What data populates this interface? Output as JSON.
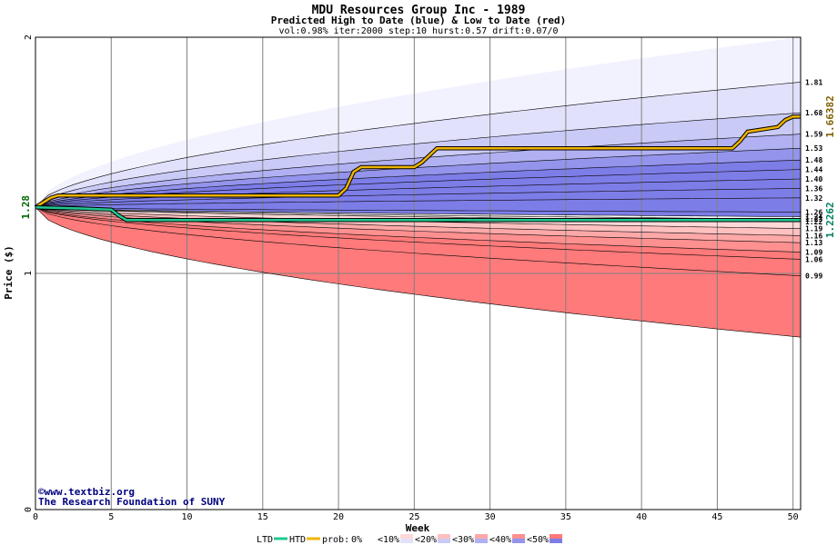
{
  "header": {
    "title": "MDU Resources Group Inc - 1989",
    "subtitle": "Predicted High to Date (blue) &  Low to Date (red)",
    "params": "vol:0.98% iter:2000 step:10 hurst:0.57 drift:0.07/0"
  },
  "credit": {
    "site": "www.textbiz.org",
    "org": "The Research Foundation of SUNY",
    "copyright_symbol": "©"
  },
  "legend": {
    "ltd_label": "LTD",
    "htd_label": "HTD",
    "prob_label": "prob:",
    "items": [
      "0%",
      "<10%",
      "<20%",
      "<30%",
      "<40%",
      "<50%"
    ]
  },
  "colors": {
    "htd_line": "#f0b400",
    "ltd_line": "#20c890",
    "blue_bands": [
      "#f2f2ff",
      "#e1e1fb",
      "#cacaf6",
      "#b0b0f2",
      "#9494ec",
      "#7d7de8"
    ],
    "red_bands": [
      "#fff0f0",
      "#ffd8d8",
      "#ffc0c0",
      "#ffa8a8",
      "#ff9090",
      "#ff7a7a"
    ],
    "start_value": "#006600",
    "htd_value": "#806000",
    "ltd_value": "#008060"
  },
  "chart_data": {
    "type": "area",
    "title": "MDU Resources Group Inc - 1989",
    "xlabel": "Week",
    "ylabel": "Price ($)",
    "xlim": [
      0,
      50.5
    ],
    "ylim": [
      0,
      2
    ],
    "x_ticks": [
      0,
      5,
      10,
      15,
      20,
      25,
      30,
      35,
      40,
      45,
      50
    ],
    "y_ticks": [
      0,
      1,
      2
    ],
    "grid": true,
    "start_price": "1.28",
    "start_price_value": 1.28,
    "htd_final": "1.66382",
    "htd_final_value": 1.66382,
    "ltd_final": "1.2262",
    "ltd_final_value": 1.2262,
    "upper_quantiles": [
      {
        "label": "2.00",
        "value": 2.0,
        "shown": false
      },
      {
        "label": "1.81",
        "value": 1.81,
        "shown": true
      },
      {
        "label": "1.68",
        "value": 1.68,
        "shown": true
      },
      {
        "label": "1.59",
        "value": 1.59,
        "shown": true
      },
      {
        "label": "1.53",
        "value": 1.53,
        "shown": true
      },
      {
        "label": "1.48",
        "value": 1.48,
        "shown": true
      },
      {
        "label": "1.44",
        "value": 1.44,
        "shown": true
      },
      {
        "label": "1.40",
        "value": 1.4,
        "shown": true
      },
      {
        "label": "1.36",
        "value": 1.36,
        "shown": true
      },
      {
        "label": "1.32",
        "value": 1.32,
        "shown": true
      },
      {
        "label": "1.26",
        "value": 1.26,
        "shown": true
      },
      {
        "label": "1.24",
        "value": 1.24,
        "shown": true
      }
    ],
    "lower_quantiles": [
      {
        "label": "1.23",
        "value": 1.23,
        "shown": true
      },
      {
        "label": "1.22",
        "value": 1.22,
        "shown": true
      },
      {
        "label": "1.19",
        "value": 1.19,
        "shown": true
      },
      {
        "label": "1.16",
        "value": 1.16,
        "shown": true
      },
      {
        "label": "1.13",
        "value": 1.13,
        "shown": true
      },
      {
        "label": "1.09",
        "value": 1.09,
        "shown": true
      },
      {
        "label": "1.06",
        "value": 1.06,
        "shown": true
      },
      {
        "label": "0.99",
        "value": 0.99,
        "shown": true
      },
      {
        "label": "0.73",
        "value": 0.73,
        "shown": false
      }
    ],
    "htd_series": {
      "x": [
        0,
        1,
        1.5,
        20,
        20.5,
        21,
        21.5,
        25,
        25.5,
        26,
        26.5,
        46,
        46.5,
        47,
        49,
        49.5,
        50,
        50.5
      ],
      "y": [
        1.28,
        1.32,
        1.33,
        1.33,
        1.36,
        1.43,
        1.45,
        1.45,
        1.47,
        1.5,
        1.53,
        1.53,
        1.56,
        1.6,
        1.62,
        1.65,
        1.66382,
        1.66382
      ]
    },
    "ltd_series": {
      "x": [
        0,
        3,
        5,
        5.5,
        6,
        50.5
      ],
      "y": [
        1.28,
        1.275,
        1.27,
        1.245,
        1.2262,
        1.2262
      ]
    }
  }
}
